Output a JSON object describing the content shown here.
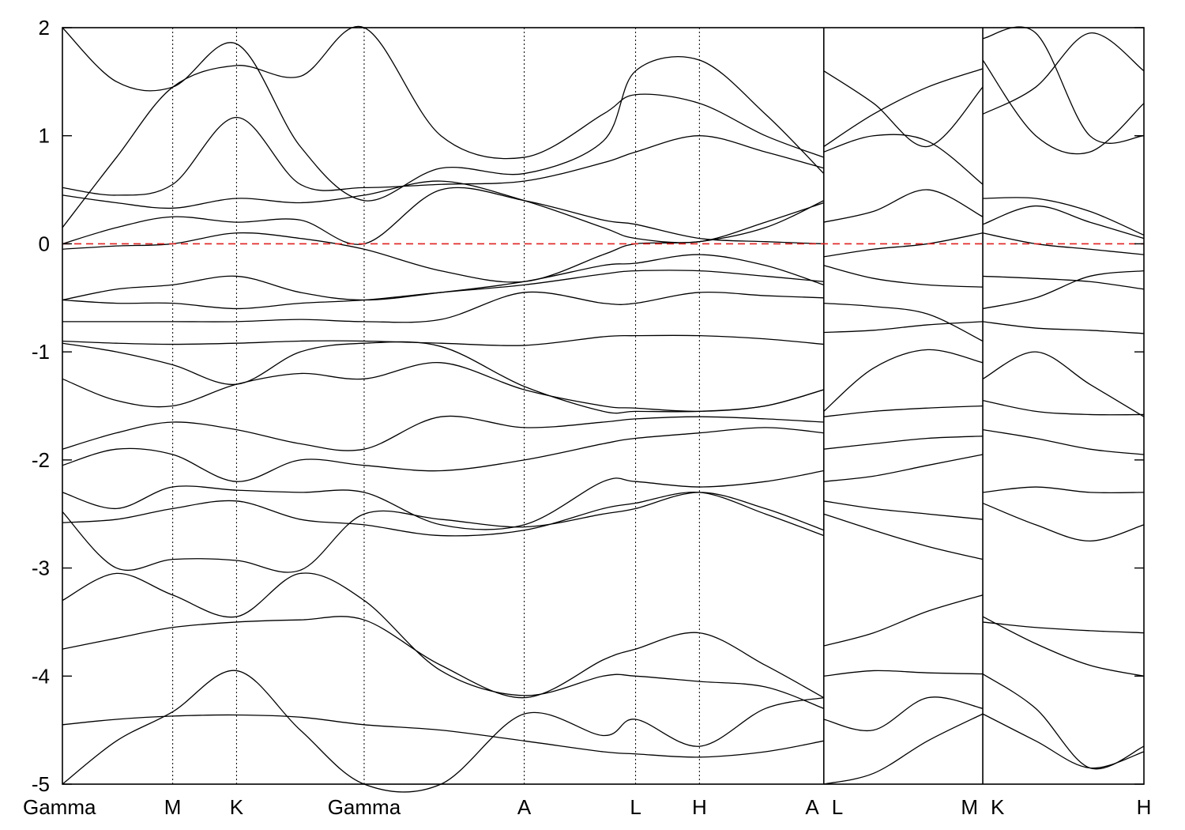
{
  "chart_data": {
    "type": "line",
    "title": "",
    "xlabel": "",
    "ylabel": "",
    "ylim": [
      -5,
      2
    ],
    "y_ticks": [
      2,
      1,
      0,
      -1,
      -2,
      -3,
      -4,
      -5
    ],
    "y_tick_labels": [
      "2",
      "1",
      "0",
      "-1",
      "-2",
      "-3",
      "-4",
      "-5"
    ],
    "k_points": [
      {
        "label": "Gamma",
        "x": 0.0
      },
      {
        "label": "M",
        "x": 0.102
      },
      {
        "label": "K",
        "x": 0.161
      },
      {
        "label": "Gamma",
        "x": 0.279
      },
      {
        "label": "A",
        "x": 0.427
      },
      {
        "label": "A",
        "x": 0.704
      },
      {
        "label": "L",
        "x": 0.704
      },
      {
        "label": "L",
        "x": 0.53
      },
      {
        "label": "H",
        "x": 0.589
      },
      {
        "label": "M",
        "x": 0.851
      },
      {
        "label": "K",
        "x": 0.851
      },
      {
        "label": "H",
        "x": 1.0
      }
    ],
    "panel_boundaries": [
      0.704,
      0.851
    ],
    "fermi_level": {
      "y": 0,
      "color": "#e02020",
      "style": "dashed"
    },
    "line_color": "#000000",
    "grid": false,
    "series": [
      {
        "x": [
          0.0,
          0.05,
          0.102,
          0.161,
          0.22,
          0.279,
          0.35,
          0.427,
          0.5,
          0.53,
          0.589,
          0.65,
          0.704
        ],
        "y": [
          -4.45,
          -4.4,
          -4.37,
          -4.36,
          -4.38,
          -4.45,
          -4.5,
          -4.6,
          -4.7,
          -4.72,
          -4.75,
          -4.7,
          -4.6
        ]
      },
      {
        "x": [
          0.0,
          0.05,
          0.102,
          0.161,
          0.22,
          0.279,
          0.35,
          0.427,
          0.5,
          0.53,
          0.589,
          0.65,
          0.704
        ],
        "y": [
          -3.75,
          -3.65,
          -3.55,
          -3.5,
          -3.48,
          -3.48,
          -3.9,
          -4.2,
          -3.85,
          -3.75,
          -3.6,
          -3.9,
          -4.2
        ]
      },
      {
        "x": [
          0.0,
          0.05,
          0.102,
          0.161,
          0.22,
          0.279,
          0.35,
          0.427,
          0.5,
          0.53,
          0.589,
          0.65,
          0.704
        ],
        "y": [
          -3.3,
          -3.05,
          -3.25,
          -3.45,
          -3.05,
          -3.3,
          -3.95,
          -4.18,
          -4.0,
          -4.0,
          -4.05,
          -4.1,
          -4.3
        ]
      },
      {
        "x": [
          0.0,
          0.05,
          0.102,
          0.161,
          0.22,
          0.279,
          0.35,
          0.427,
          0.5,
          0.53,
          0.589,
          0.65,
          0.704
        ],
        "y": [
          -2.48,
          -3.0,
          -2.92,
          -2.93,
          -3.02,
          -2.5,
          -2.55,
          -2.62,
          -2.5,
          -2.45,
          -2.3,
          -2.45,
          -2.65
        ]
      },
      {
        "x": [
          0.0,
          0.05,
          0.102,
          0.161,
          0.22,
          0.279,
          0.35,
          0.427,
          0.5,
          0.53,
          0.589,
          0.65,
          0.704
        ],
        "y": [
          -2.58,
          -2.55,
          -2.45,
          -2.38,
          -2.55,
          -2.6,
          -2.7,
          -2.65,
          -2.45,
          -2.4,
          -2.3,
          -2.5,
          -2.7
        ]
      },
      {
        "x": [
          0.0,
          0.05,
          0.102,
          0.161,
          0.22,
          0.279,
          0.35,
          0.427,
          0.5,
          0.53,
          0.589,
          0.65,
          0.704
        ],
        "y": [
          -2.3,
          -2.45,
          -2.25,
          -2.28,
          -2.3,
          -2.3,
          -2.6,
          -2.6,
          -2.2,
          -2.2,
          -2.25,
          -2.2,
          -2.1
        ]
      },
      {
        "x": [
          0.0,
          0.05,
          0.102,
          0.161,
          0.22,
          0.279,
          0.35,
          0.427,
          0.5,
          0.53,
          0.589,
          0.65,
          0.704
        ],
        "y": [
          -2.05,
          -1.9,
          -1.95,
          -2.2,
          -2.0,
          -2.05,
          -2.1,
          -2.0,
          -1.85,
          -1.8,
          -1.75,
          -1.7,
          -1.75
        ]
      },
      {
        "x": [
          0.0,
          0.05,
          0.102,
          0.161,
          0.22,
          0.279,
          0.35,
          0.427,
          0.5,
          0.53,
          0.589,
          0.65,
          0.704
        ],
        "y": [
          -1.9,
          -1.75,
          -1.65,
          -1.72,
          -1.85,
          -1.9,
          -1.6,
          -1.7,
          -1.65,
          -1.62,
          -1.6,
          -1.62,
          -1.65
        ]
      },
      {
        "x": [
          0.0,
          0.05,
          0.102,
          0.161,
          0.22,
          0.279,
          0.35,
          0.427,
          0.5,
          0.53,
          0.589,
          0.65,
          0.704
        ],
        "y": [
          -1.25,
          -1.45,
          -1.5,
          -1.3,
          -1.2,
          -1.25,
          -1.1,
          -1.35,
          -1.5,
          -1.52,
          -1.55,
          -1.5,
          -1.35
        ]
      },
      {
        "x": [
          0.0,
          0.05,
          0.102,
          0.161,
          0.22,
          0.279,
          0.35,
          0.427,
          0.5,
          0.53,
          0.589,
          0.65,
          0.704
        ],
        "y": [
          -0.92,
          -1.0,
          -1.12,
          -1.3,
          -1.0,
          -0.92,
          -0.95,
          -1.32,
          -1.55,
          -1.55,
          -1.55,
          -1.5,
          -1.35
        ]
      },
      {
        "x": [
          0.0,
          0.05,
          0.102,
          0.161,
          0.22,
          0.279,
          0.35,
          0.427,
          0.5,
          0.53,
          0.589,
          0.65,
          0.704
        ],
        "y": [
          -0.9,
          -0.92,
          -0.93,
          -0.92,
          -0.9,
          -0.9,
          -0.92,
          -0.94,
          -0.86,
          -0.85,
          -0.85,
          -0.88,
          -0.93
        ]
      },
      {
        "x": [
          0.0,
          0.05,
          0.102,
          0.161,
          0.22,
          0.279,
          0.35,
          0.427,
          0.5,
          0.53,
          0.589,
          0.65,
          0.704
        ],
        "y": [
          -0.72,
          -0.72,
          -0.72,
          -0.72,
          -0.7,
          -0.72,
          -0.7,
          -0.45,
          -0.55,
          -0.55,
          -0.45,
          -0.48,
          -0.5
        ]
      },
      {
        "x": [
          0.0,
          0.05,
          0.102,
          0.161,
          0.22,
          0.279,
          0.35,
          0.427,
          0.5,
          0.53,
          0.589,
          0.65,
          0.704
        ],
        "y": [
          -0.52,
          -0.55,
          -0.55,
          -0.6,
          -0.55,
          -0.52,
          -0.45,
          -0.38,
          -0.28,
          -0.25,
          -0.25,
          -0.3,
          -0.35
        ]
      },
      {
        "x": [
          0.0,
          0.05,
          0.102,
          0.161,
          0.22,
          0.279,
          0.35,
          0.427,
          0.5,
          0.53,
          0.589,
          0.65,
          0.704
        ],
        "y": [
          -0.52,
          -0.42,
          -0.38,
          -0.3,
          -0.45,
          -0.52,
          -0.45,
          -0.35,
          -0.2,
          -0.18,
          -0.1,
          -0.2,
          -0.38
        ]
      },
      {
        "x": [
          0.0,
          0.05,
          0.102,
          0.161,
          0.22,
          0.279,
          0.35,
          0.427,
          0.5,
          0.53,
          0.589,
          0.65,
          0.704
        ],
        "y": [
          -0.05,
          -0.02,
          0.0,
          0.1,
          0.05,
          -0.05,
          -0.25,
          -0.35,
          -0.1,
          0.0,
          0.02,
          0.15,
          0.4
        ]
      },
      {
        "x": [
          0.0,
          0.05,
          0.102,
          0.161,
          0.22,
          0.279,
          0.35,
          0.427,
          0.5,
          0.53,
          0.589,
          0.65,
          0.704
        ],
        "y": [
          0.0,
          0.15,
          0.25,
          0.2,
          0.22,
          0.0,
          0.5,
          0.4,
          0.22,
          0.18,
          0.05,
          0.02,
          0.0
        ]
      },
      {
        "x": [
          0.0,
          0.05,
          0.102,
          0.161,
          0.22,
          0.279,
          0.35,
          0.427,
          0.5,
          0.53,
          0.589,
          0.65,
          0.704
        ],
        "y": [
          0.45,
          0.38,
          0.33,
          0.42,
          0.38,
          0.45,
          0.58,
          0.4,
          0.15,
          0.05,
          0.02,
          0.2,
          0.38
        ]
      },
      {
        "x": [
          0.0,
          0.05,
          0.102,
          0.161,
          0.22,
          0.279,
          0.35,
          0.427,
          0.5,
          0.53,
          0.589,
          0.65,
          0.704
        ],
        "y": [
          0.52,
          0.45,
          0.55,
          1.17,
          0.55,
          0.52,
          0.55,
          0.58,
          0.75,
          0.85,
          1.0,
          0.85,
          0.7
        ]
      },
      {
        "x": [
          0.0,
          0.05,
          0.102,
          0.161,
          0.22,
          0.279,
          0.35,
          0.427,
          0.5,
          0.53,
          0.589,
          0.65,
          0.704
        ],
        "y": [
          0.15,
          0.8,
          1.45,
          1.65,
          1.55,
          2.0,
          1.0,
          0.8,
          1.2,
          1.38,
          1.3,
          1.0,
          0.8
        ]
      },
      {
        "x": [
          0.0,
          0.05,
          0.102,
          0.161,
          0.22,
          0.279,
          0.35,
          0.427,
          0.5,
          0.53,
          0.589,
          0.65,
          0.704
        ],
        "y": [
          2.0,
          1.5,
          1.45,
          1.85,
          0.9,
          0.4,
          0.7,
          0.65,
          0.95,
          1.6,
          1.7,
          1.2,
          0.65
        ]
      },
      {
        "x": [
          0.0,
          0.05,
          0.102,
          0.161,
          0.22,
          0.279,
          0.35,
          0.427,
          0.5,
          0.53,
          0.589,
          0.65,
          0.704
        ],
        "y": [
          -5.0,
          -4.6,
          -4.33,
          -3.95,
          -4.5,
          -5.0,
          -5.0,
          -4.35,
          -4.55,
          -4.4,
          -4.65,
          -4.3,
          -4.2
        ]
      },
      {
        "x": [
          0.704,
          0.75,
          0.8,
          0.851
        ],
        "y": [
          -4.4,
          -4.5,
          -4.2,
          -4.3
        ]
      },
      {
        "x": [
          0.704,
          0.75,
          0.8,
          0.851
        ],
        "y": [
          -3.72,
          -3.6,
          -3.4,
          -3.25
        ]
      },
      {
        "x": [
          0.704,
          0.75,
          0.8,
          0.851
        ],
        "y": [
          -4.0,
          -3.95,
          -3.97,
          -3.98
        ]
      },
      {
        "x": [
          0.704,
          0.75,
          0.8,
          0.851
        ],
        "y": [
          -5.0,
          -4.9,
          -4.6,
          -4.35
        ]
      },
      {
        "x": [
          0.704,
          0.75,
          0.8,
          0.851
        ],
        "y": [
          -2.5,
          -2.65,
          -2.8,
          -2.92
        ]
      },
      {
        "x": [
          0.704,
          0.75,
          0.8,
          0.851
        ],
        "y": [
          -2.38,
          -2.45,
          -2.5,
          -2.55
        ]
      },
      {
        "x": [
          0.704,
          0.75,
          0.8,
          0.851
        ],
        "y": [
          -2.2,
          -2.15,
          -2.05,
          -1.95
        ]
      },
      {
        "x": [
          0.704,
          0.75,
          0.8,
          0.851
        ],
        "y": [
          -1.9,
          -1.85,
          -1.8,
          -1.78
        ]
      },
      {
        "x": [
          0.704,
          0.75,
          0.8,
          0.851
        ],
        "y": [
          -1.55,
          -1.15,
          -0.98,
          -1.1
        ]
      },
      {
        "x": [
          0.704,
          0.75,
          0.8,
          0.851
        ],
        "y": [
          -1.6,
          -1.55,
          -1.52,
          -1.5
        ]
      },
      {
        "x": [
          0.704,
          0.75,
          0.8,
          0.851
        ],
        "y": [
          -0.82,
          -0.8,
          -0.75,
          -0.72
        ]
      },
      {
        "x": [
          0.704,
          0.75,
          0.8,
          0.851
        ],
        "y": [
          -0.55,
          -0.58,
          -0.65,
          -0.9
        ]
      },
      {
        "x": [
          0.704,
          0.75,
          0.8,
          0.851
        ],
        "y": [
          -0.2,
          -0.32,
          -0.38,
          -0.4
        ]
      },
      {
        "x": [
          0.704,
          0.75,
          0.8,
          0.851
        ],
        "y": [
          -0.12,
          -0.05,
          0.0,
          0.1
        ]
      },
      {
        "x": [
          0.704,
          0.75,
          0.8,
          0.851
        ],
        "y": [
          0.2,
          0.3,
          0.5,
          0.25
        ]
      },
      {
        "x": [
          0.704,
          0.75,
          0.8,
          0.851
        ],
        "y": [
          0.85,
          1.0,
          0.95,
          0.55
        ]
      },
      {
        "x": [
          0.704,
          0.75,
          0.8,
          0.851
        ],
        "y": [
          1.6,
          1.3,
          0.9,
          1.45
        ]
      },
      {
        "x": [
          0.704,
          0.75,
          0.8,
          0.851
        ],
        "y": [
          0.9,
          1.2,
          1.45,
          1.62
        ]
      },
      {
        "x": [
          0.851,
          0.9,
          0.95,
          1.0
        ],
        "y": [
          -3.45,
          -3.7,
          -3.9,
          -4.0
        ]
      },
      {
        "x": [
          0.851,
          0.9,
          0.95,
          1.0
        ],
        "y": [
          -3.5,
          -3.55,
          -3.58,
          -3.6
        ]
      },
      {
        "x": [
          0.851,
          0.9,
          0.95,
          1.0
        ],
        "y": [
          -3.98,
          -4.3,
          -4.85,
          -4.65
        ]
      },
      {
        "x": [
          0.851,
          0.9,
          0.95,
          1.0
        ],
        "y": [
          -4.35,
          -4.6,
          -4.85,
          -4.7
        ]
      },
      {
        "x": [
          0.851,
          0.9,
          0.95,
          1.0
        ],
        "y": [
          -2.4,
          -2.6,
          -2.75,
          -2.6
        ]
      },
      {
        "x": [
          0.851,
          0.9,
          0.95,
          1.0
        ],
        "y": [
          -2.3,
          -2.25,
          -2.3,
          -2.3
        ]
      },
      {
        "x": [
          0.851,
          0.9,
          0.95,
          1.0
        ],
        "y": [
          -1.72,
          -1.8,
          -1.9,
          -1.95
        ]
      },
      {
        "x": [
          0.851,
          0.9,
          0.95,
          1.0
        ],
        "y": [
          -1.25,
          -1.0,
          -1.3,
          -1.6
        ]
      },
      {
        "x": [
          0.851,
          0.9,
          0.95,
          1.0
        ],
        "y": [
          -1.45,
          -1.55,
          -1.58,
          -1.58
        ]
      },
      {
        "x": [
          0.851,
          0.9,
          0.95,
          1.0
        ],
        "y": [
          -0.72,
          -0.78,
          -0.8,
          -0.83
        ]
      },
      {
        "x": [
          0.851,
          0.9,
          0.95,
          1.0
        ],
        "y": [
          -0.6,
          -0.5,
          -0.3,
          -0.25
        ]
      },
      {
        "x": [
          0.851,
          0.9,
          0.95,
          1.0
        ],
        "y": [
          -0.3,
          -0.32,
          -0.35,
          -0.42
        ]
      },
      {
        "x": [
          0.851,
          0.9,
          0.95,
          1.0
        ],
        "y": [
          0.1,
          0.0,
          -0.05,
          -0.1
        ]
      },
      {
        "x": [
          0.851,
          0.9,
          0.95,
          1.0
        ],
        "y": [
          0.18,
          0.35,
          0.2,
          0.05
        ]
      },
      {
        "x": [
          0.851,
          0.9,
          0.95,
          1.0
        ],
        "y": [
          0.42,
          0.42,
          0.3,
          0.08
        ]
      },
      {
        "x": [
          0.851,
          0.9,
          0.95,
          1.0
        ],
        "y": [
          1.7,
          1.0,
          0.85,
          1.3
        ]
      },
      {
        "x": [
          0.851,
          0.9,
          0.95,
          1.0
        ],
        "y": [
          1.2,
          1.45,
          1.95,
          1.6
        ]
      },
      {
        "x": [
          0.851,
          0.9,
          0.95,
          1.0
        ],
        "y": [
          1.9,
          1.95,
          1.0,
          1.0
        ]
      }
    ]
  }
}
